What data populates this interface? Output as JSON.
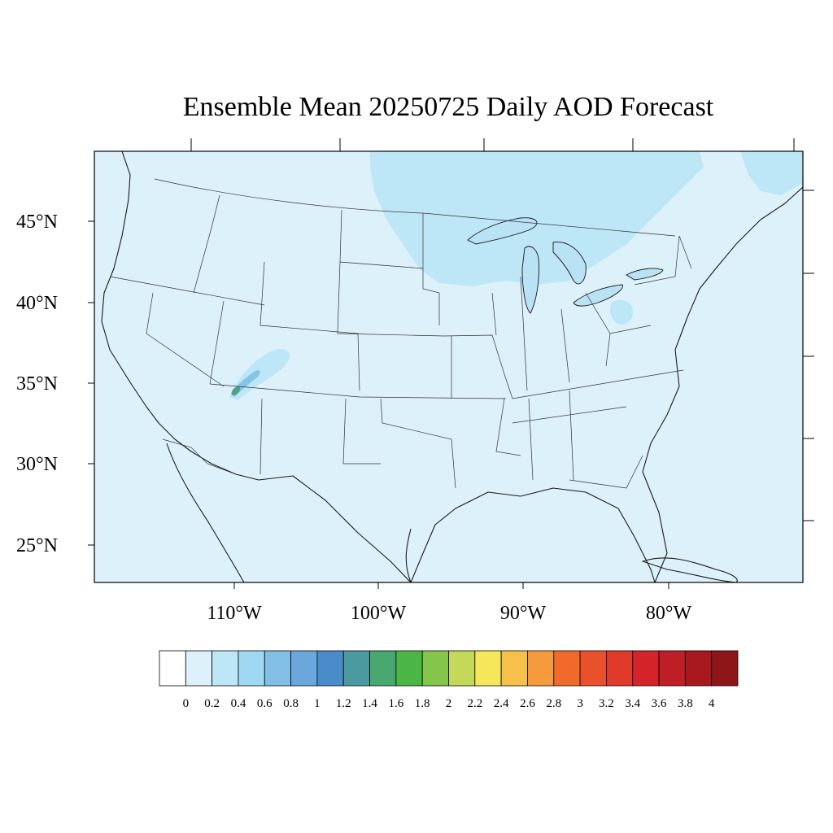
{
  "title": "Ensemble Mean 20250725 Daily AOD Forecast",
  "map": {
    "region": "Contiguous United States",
    "ocean_color": "#dcf1fa",
    "land_base_color": "#dcf1fa",
    "lat_labels": [
      "45°N",
      "40°N",
      "35°N",
      "30°N",
      "25°N"
    ],
    "lon_labels": [
      "110°W",
      "100°W",
      "90°W",
      "80°W"
    ],
    "features": [
      {
        "name": "northern-smoke-plume",
        "aod_level": "0.2-0.4",
        "color": "#bde6f7"
      },
      {
        "name": "mid-atlantic-patch",
        "aod_level": "0.2-0.4",
        "color": "#bde6f7"
      },
      {
        "name": "southwest-plume-outer",
        "aod_level": "0.2-0.4",
        "color": "#bde6f7"
      },
      {
        "name": "southwest-plume-mid",
        "aod_level": "0.4-0.8",
        "color": "#86c5e8"
      },
      {
        "name": "southwest-plume-core",
        "aod_level": "1.2-1.6",
        "color": "#4aa383"
      }
    ]
  },
  "colorbar": {
    "labels": [
      "0",
      "0.2",
      "0.4",
      "0.6",
      "0.8",
      "1",
      "1.2",
      "1.4",
      "1.6",
      "1.8",
      "2",
      "2.2",
      "2.4",
      "2.6",
      "2.8",
      "3",
      "3.2",
      "3.4",
      "3.6",
      "3.8",
      "4"
    ],
    "colors": [
      "#ffffff",
      "#dcf1fa",
      "#bde6f7",
      "#9ed8f2",
      "#82bfe6",
      "#69a7dc",
      "#4a8bc9",
      "#4a9aa0",
      "#48a870",
      "#4bb646",
      "#86c54b",
      "#c4d95a",
      "#f5e65a",
      "#f7c04a",
      "#f59b3e",
      "#f06a2c",
      "#e8512c",
      "#e03a2a",
      "#d42329",
      "#bf1e26",
      "#a8191f",
      "#8e1619"
    ]
  }
}
